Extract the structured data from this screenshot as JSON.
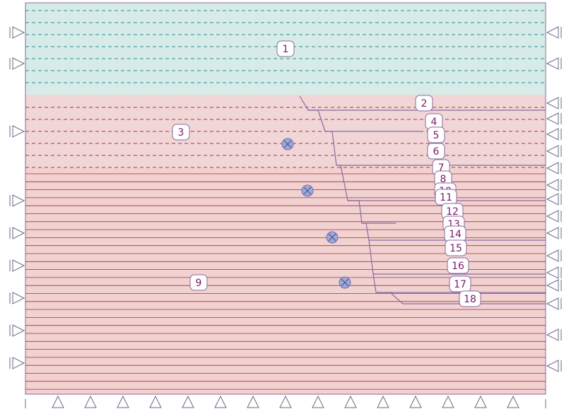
{
  "colors": {
    "layer1_fill": "#d7ece9",
    "layer3_fill": "#f0d6d6",
    "layer9_fill": "#f2d2d0",
    "border": "#8a6aa0",
    "dash_teal": "#2a8a8a",
    "dash_red": "#b03040",
    "solid_red": "#8a1830",
    "label_text": "#7a1a6e",
    "anchor_fill": "#a0a8d8",
    "support": "#6a6a8a"
  },
  "labels": [
    {
      "id": "1",
      "text": "1"
    },
    {
      "id": "2",
      "text": "2"
    },
    {
      "id": "3",
      "text": "3"
    },
    {
      "id": "4",
      "text": "4"
    },
    {
      "id": "5",
      "text": "5"
    },
    {
      "id": "6",
      "text": "6"
    },
    {
      "id": "7",
      "text": "7"
    },
    {
      "id": "8",
      "text": "8"
    },
    {
      "id": "9",
      "text": "9"
    },
    {
      "id": "10",
      "text": "10"
    },
    {
      "id": "11",
      "text": "11"
    },
    {
      "id": "12",
      "text": "12"
    },
    {
      "id": "13",
      "text": "13"
    },
    {
      "id": "14",
      "text": "14"
    },
    {
      "id": "15",
      "text": "15"
    },
    {
      "id": "16",
      "text": "16"
    },
    {
      "id": "17",
      "text": "17"
    },
    {
      "id": "18",
      "text": "18"
    }
  ],
  "icons": {
    "anchor": "anchor-cross-circle-icon",
    "left_support": "roller-support-right-icon",
    "right_support": "roller-support-left-icon",
    "bottom_support": "pin-support-up-icon"
  },
  "anchor_count": 4
}
